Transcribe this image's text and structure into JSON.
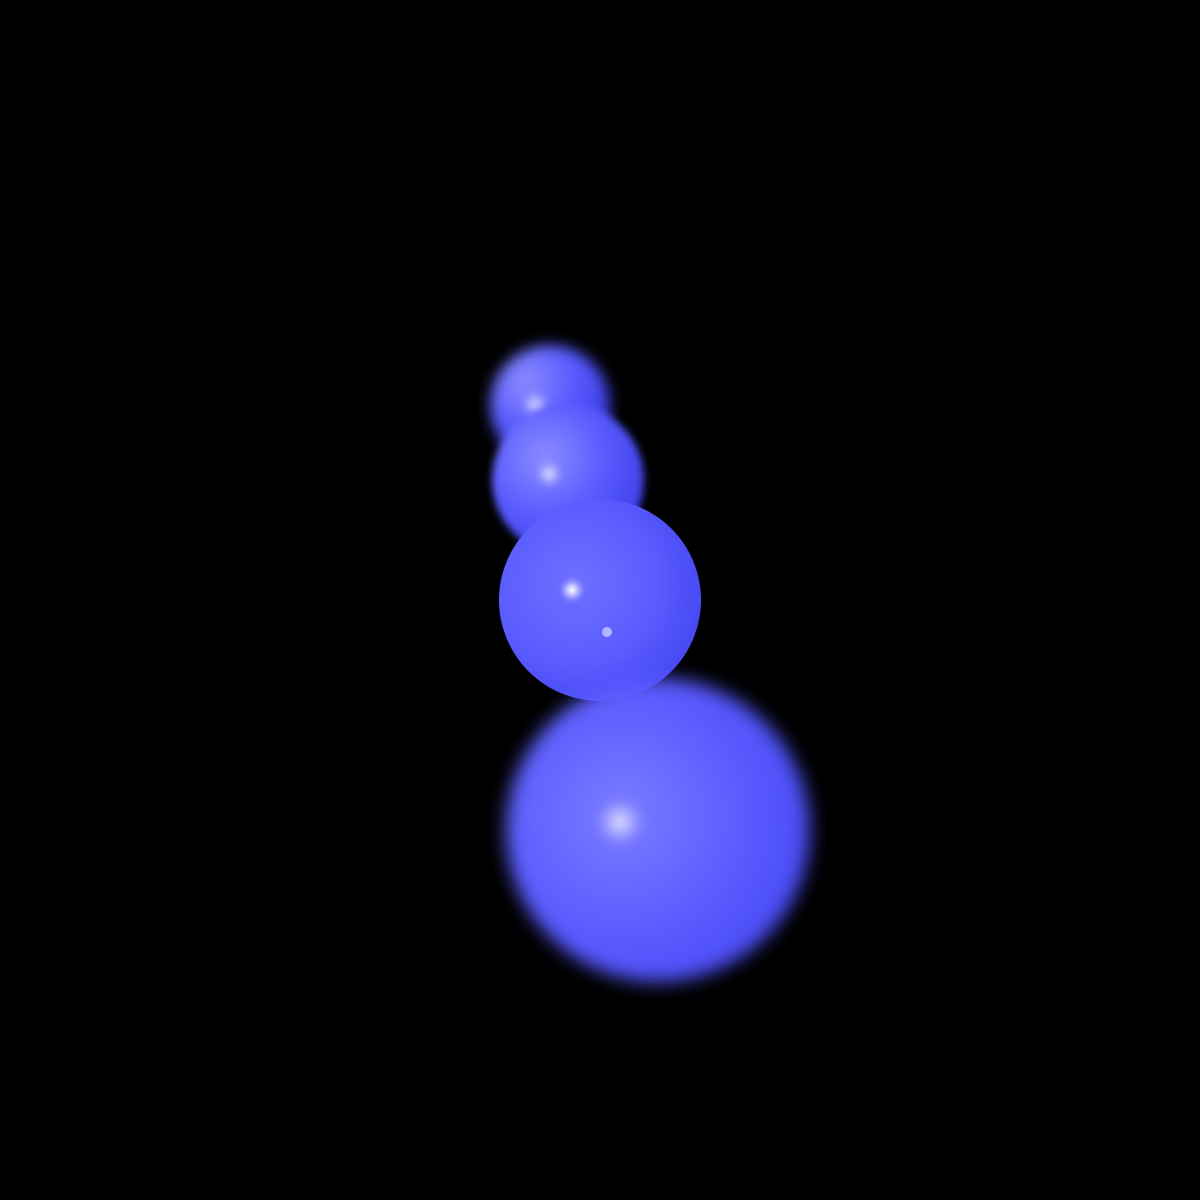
{
  "scene": {
    "background_color": "#000000",
    "sphere_color": "#5a5cff",
    "highlight_color": "#ffffff",
    "shadow_color": "#2a2ad6",
    "sphere_count": 4
  }
}
